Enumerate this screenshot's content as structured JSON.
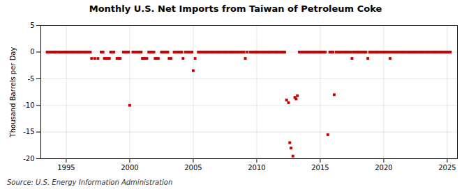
{
  "chart_data": {
    "type": "scatter",
    "title": "Monthly U.S. Net Imports from Taiwan of Petroleum Coke",
    "ylabel": "Thousand Barrels per Day",
    "caption": "Source: U.S. Energy Information Administration",
    "color": "#cc0000",
    "marker": "square",
    "grid": true,
    "xlim": [
      1993.0,
      2025.8
    ],
    "xticks": [
      1995,
      2000,
      2005,
      2010,
      2015,
      2020,
      2025
    ],
    "ylim": [
      -20,
      5
    ],
    "yticks": [
      -20,
      -15,
      -10,
      -5,
      0,
      5
    ],
    "x": [
      1993.5,
      1993.6,
      1993.75,
      1993.9,
      1994.0,
      1994.1,
      1994.2,
      1994.4,
      1994.5,
      1994.6,
      1994.75,
      1994.9,
      1995.0,
      1995.1,
      1995.25,
      1995.4,
      1995.5,
      1995.6,
      1995.75,
      1995.9,
      1996.0,
      1996.1,
      1996.25,
      1996.4,
      1996.5,
      1996.6,
      1996.75,
      1996.9,
      1997.0,
      1997.25,
      1997.5,
      1997.75,
      1997.9,
      1998.0,
      1998.1,
      1998.25,
      1998.4,
      1998.5,
      1998.6,
      1998.75,
      1999.0,
      1999.1,
      1999.25,
      1999.5,
      1999.6,
      1999.75,
      1999.9,
      2000.0,
      2000.25,
      2000.4,
      2000.6,
      2000.75,
      2000.9,
      2001.0,
      2001.1,
      2001.2,
      2001.35,
      2001.5,
      2001.6,
      2001.75,
      2001.9,
      2002.0,
      2002.1,
      2002.25,
      2002.5,
      2002.6,
      2002.75,
      2002.9,
      2003.0,
      2003.1,
      2003.25,
      2003.5,
      2003.6,
      2003.75,
      2003.9,
      2004.0,
      2004.1,
      2004.2,
      2004.4,
      2004.6,
      2004.75,
      2004.9,
      2005.0,
      2005.15,
      2005.4,
      2005.5,
      2005.6,
      2005.75,
      2005.9,
      2006.0,
      2006.1,
      2006.25,
      2006.4,
      2006.5,
      2006.6,
      2006.75,
      2006.9,
      2007.0,
      2007.1,
      2007.25,
      2007.4,
      2007.5,
      2007.6,
      2007.75,
      2007.9,
      2008.0,
      2008.1,
      2008.25,
      2008.4,
      2008.5,
      2008.6,
      2008.75,
      2008.9,
      2009.0,
      2009.1,
      2009.25,
      2009.5,
      2009.6,
      2009.75,
      2009.9,
      2010.0,
      2010.1,
      2010.25,
      2010.4,
      2010.5,
      2010.6,
      2010.75,
      2010.9,
      2011.0,
      2011.1,
      2011.25,
      2011.4,
      2011.5,
      2011.6,
      2011.75,
      2011.9,
      2012.0,
      2012.1,
      2012.2,
      2012.35,
      2012.5,
      2012.6,
      2012.7,
      2012.85,
      2013.0,
      2013.1,
      2013.2,
      2013.35,
      2013.5,
      2013.6,
      2013.75,
      2013.9,
      2014.0,
      2014.1,
      2014.25,
      2014.4,
      2014.5,
      2014.6,
      2014.75,
      2014.9,
      2015.0,
      2015.1,
      2015.25,
      2015.4,
      2015.6,
      2015.75,
      2015.9,
      2016.0,
      2016.1,
      2016.25,
      2016.4,
      2016.5,
      2016.6,
      2016.75,
      2016.9,
      2017.0,
      2017.1,
      2017.25,
      2017.4,
      2017.5,
      2017.6,
      2017.75,
      2017.9,
      2018.0,
      2018.1,
      2018.25,
      2018.4,
      2018.5,
      2018.6,
      2018.75,
      2018.9,
      2019.0,
      2019.1,
      2019.25,
      2019.4,
      2019.5,
      2019.6,
      2019.75,
      2019.9,
      2020.0,
      2020.1,
      2020.25,
      2020.4,
      2020.5,
      2020.6,
      2020.75,
      2020.9,
      2021.0,
      2021.1,
      2021.25,
      2021.4,
      2021.5,
      2021.6,
      2021.75,
      2021.9,
      2022.0,
      2022.1,
      2022.2,
      2022.3,
      2022.4,
      2022.5,
      2022.6,
      2022.75,
      2022.9,
      2023.0,
      2023.1,
      2023.25,
      2023.4,
      2023.5,
      2023.6,
      2023.75,
      2023.9,
      2024.0,
      2024.1,
      2024.25,
      2024.4,
      2024.5,
      2024.6,
      2024.75,
      2024.9,
      2025.0,
      2025.1,
      2025.25
    ],
    "values": [
      0,
      0,
      0,
      0,
      0,
      0,
      0,
      0,
      0,
      0,
      0,
      0,
      0,
      0,
      0,
      0,
      0,
      0,
      0,
      0,
      0,
      0,
      0,
      0,
      0,
      0,
      0,
      0,
      -1.2,
      -1.2,
      -1.2,
      0,
      0,
      -1.2,
      -1.2,
      -1.2,
      -1.2,
      0,
      0,
      0,
      -1.2,
      -1.2,
      -1.2,
      0,
      0,
      0,
      0,
      -10,
      0,
      0,
      0,
      0,
      0,
      -1.2,
      -1.2,
      -1.2,
      -1.2,
      0,
      0,
      0,
      0,
      -1.2,
      -1.2,
      -1.2,
      0,
      0,
      0,
      0,
      0,
      -1.2,
      -1.2,
      0,
      0,
      0,
      0,
      0,
      0,
      -1.2,
      0,
      0,
      0,
      0,
      -3.5,
      -1.2,
      0,
      0,
      0,
      0,
      0,
      0,
      0,
      0,
      0,
      0,
      0,
      0,
      0,
      0,
      0,
      0,
      0,
      0,
      0,
      0,
      0,
      0,
      0,
      0,
      0,
      0,
      0,
      0,
      0,
      0,
      -1.2,
      0,
      0,
      0,
      0,
      0,
      0,
      0,
      0,
      0,
      0,
      0,
      0,
      0,
      0,
      0,
      0,
      0,
      0,
      0,
      0,
      0,
      0,
      0,
      0,
      -9.0,
      -9.5,
      -17.0,
      -18.0,
      -19.5,
      -8.5,
      -8.8,
      -8.2,
      0,
      0,
      0,
      0,
      0,
      0,
      0,
      0,
      0,
      0,
      0,
      0,
      0,
      0,
      0,
      0,
      0,
      -15.5,
      0,
      0,
      0,
      -8.0,
      0,
      0,
      0,
      0,
      0,
      0,
      0,
      0,
      0,
      0,
      -1.2,
      0,
      0,
      0,
      0,
      0,
      0,
      0,
      0,
      0,
      -1.2,
      0,
      0,
      0,
      0,
      0,
      0,
      0,
      0,
      0,
      0,
      0,
      0,
      0,
      -1.2,
      0,
      0,
      0,
      0,
      0,
      0,
      0,
      0,
      0,
      0,
      0,
      0,
      0,
      0,
      0,
      0,
      0,
      0,
      0,
      0,
      0,
      0,
      0,
      0,
      0,
      0,
      0,
      0,
      0,
      0,
      0,
      0,
      0,
      0,
      0,
      0,
      0,
      0,
      0
    ]
  }
}
